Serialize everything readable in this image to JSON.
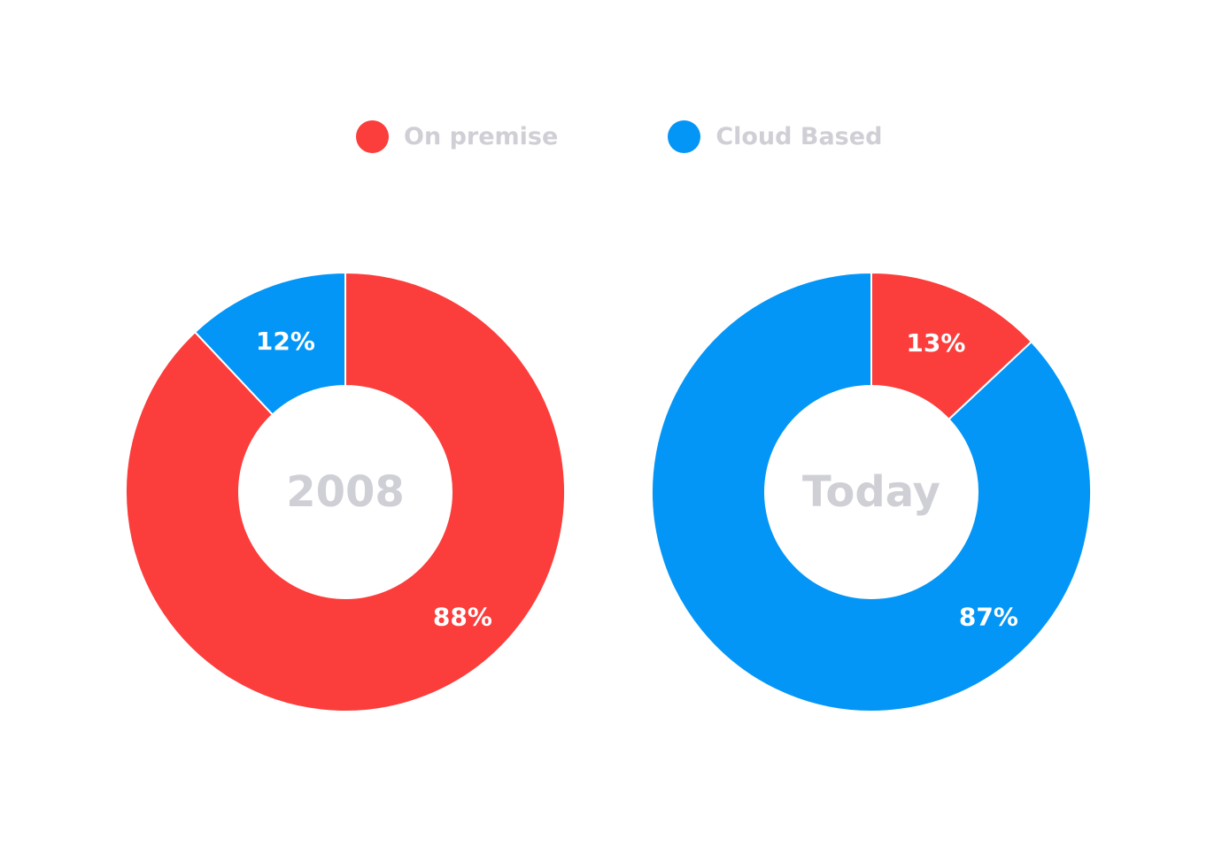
{
  "legend": {
    "items": [
      {
        "label": "On premise",
        "color": "#fb3d3b"
      },
      {
        "label": "Cloud Based",
        "color": "#0396f6"
      }
    ]
  },
  "chart_data": [
    {
      "type": "pie",
      "donut": true,
      "center_label": "2008",
      "series": [
        {
          "name": "On premise",
          "value": 88,
          "label": "88%",
          "color": "#fb3d3b"
        },
        {
          "name": "Cloud Based",
          "value": 12,
          "label": "12%",
          "color": "#0396f6"
        }
      ],
      "start": "top",
      "direction": "clockwise",
      "legend_placement": "top-center"
    },
    {
      "type": "pie",
      "donut": true,
      "center_label": "Today",
      "series": [
        {
          "name": "On premise",
          "value": 13,
          "label": "13%",
          "color": "#fb3d3b"
        },
        {
          "name": "Cloud Based",
          "value": 87,
          "label": "87%",
          "color": "#0396f6"
        }
      ],
      "start": "top",
      "direction": "clockwise",
      "legend_placement": "top-center"
    }
  ]
}
